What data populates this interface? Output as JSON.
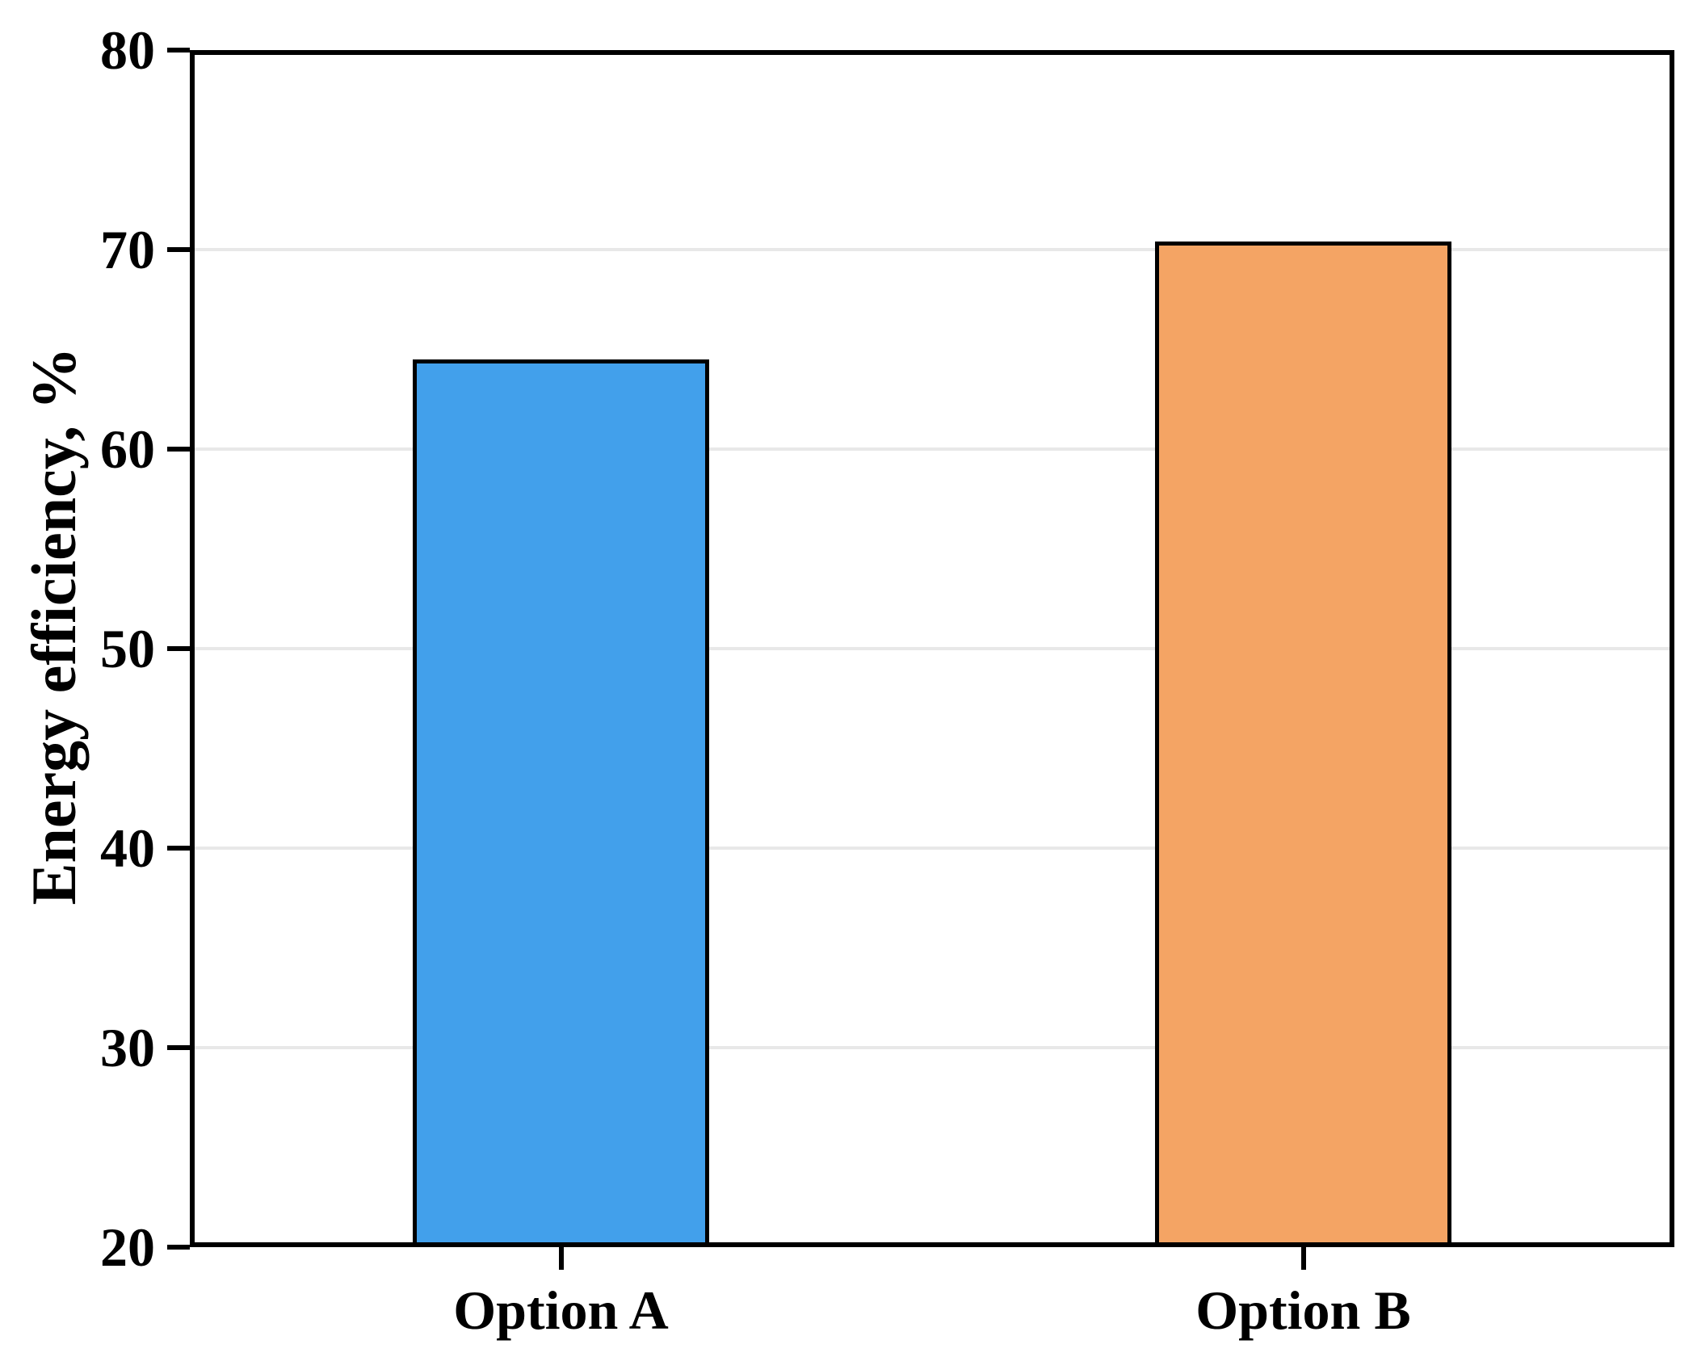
{
  "figure": {
    "background_color": "#ffffff"
  },
  "chart_data": {
    "type": "bar",
    "title": "",
    "categories": [
      "Option A",
      "Option B"
    ],
    "values": [
      64.5,
      70.4
    ],
    "series": [
      {
        "name": "Energy efficiency",
        "values": [
          64.5,
          70.4
        ]
      }
    ],
    "bar_colors": [
      "#42a0eb",
      "#f4a464"
    ],
    "bar_edge_color": "#000000",
    "xlabel": "",
    "ylabel": "Energy efficiency, %",
    "ylim": [
      20,
      80
    ],
    "yticks": [
      20,
      30,
      40,
      50,
      60,
      70,
      80
    ],
    "ytick_labels": [
      "20",
      "30",
      "40",
      "50",
      "60",
      "70",
      "80"
    ],
    "xtick_labels": [
      "Option A",
      "Option B"
    ],
    "grid": "horizontal",
    "gridline_color": "#e8e8e8",
    "axis_color": "#000000",
    "legend_position": "none",
    "bar_width_frac": 0.2
  }
}
